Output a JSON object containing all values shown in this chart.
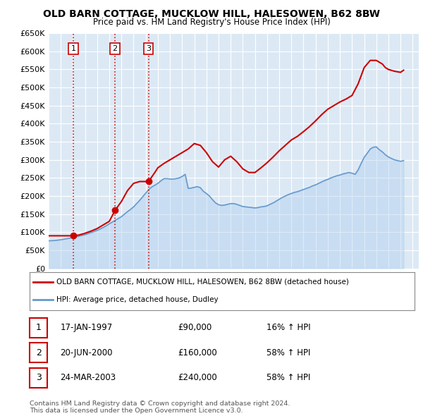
{
  "title": "OLD BARN COTTAGE, MUCKLOW HILL, HALESOWEN, B62 8BW",
  "subtitle": "Price paid vs. HM Land Registry's House Price Index (HPI)",
  "ylabel_ticks": [
    "£0",
    "£50K",
    "£100K",
    "£150K",
    "£200K",
    "£250K",
    "£300K",
    "£350K",
    "£400K",
    "£450K",
    "£500K",
    "£550K",
    "£600K",
    "£650K"
  ],
  "ytick_values": [
    0,
    50000,
    100000,
    150000,
    200000,
    250000,
    300000,
    350000,
    400000,
    450000,
    500000,
    550000,
    600000,
    650000
  ],
  "xlim_start": 1995.0,
  "xlim_end": 2025.5,
  "ylim": [
    0,
    650000
  ],
  "background_color": "#ffffff",
  "plot_bg_color": "#dce9f5",
  "grid_color": "#ffffff",
  "property_color": "#cc0000",
  "hpi_color": "#6699cc",
  "hpi_fill_color": "#aaccee",
  "vline_color": "#cc0000",
  "sale_dates": [
    1997.04,
    2000.47,
    2003.23
  ],
  "sale_prices": [
    90000,
    160000,
    240000
  ],
  "sale_labels": [
    "1",
    "2",
    "3"
  ],
  "legend_property_label": "OLD BARN COTTAGE, MUCKLOW HILL, HALESOWEN, B62 8BW (detached house)",
  "legend_hpi_label": "HPI: Average price, detached house, Dudley",
  "table_data": [
    [
      "1",
      "17-JAN-1997",
      "£90,000",
      "16% ↑ HPI"
    ],
    [
      "2",
      "20-JUN-2000",
      "£160,000",
      "58% ↑ HPI"
    ],
    [
      "3",
      "24-MAR-2003",
      "£240,000",
      "58% ↑ HPI"
    ]
  ],
  "footer": "Contains HM Land Registry data © Crown copyright and database right 2024.\nThis data is licensed under the Open Government Licence v3.0.",
  "hpi_x": [
    1995.0,
    1995.25,
    1995.5,
    1995.75,
    1996.0,
    1996.25,
    1996.5,
    1996.75,
    1997.0,
    1997.25,
    1997.5,
    1997.75,
    1998.0,
    1998.25,
    1998.5,
    1998.75,
    1999.0,
    1999.25,
    1999.5,
    1999.75,
    2000.0,
    2000.25,
    2000.5,
    2000.75,
    2001.0,
    2001.25,
    2001.5,
    2001.75,
    2002.0,
    2002.25,
    2002.5,
    2002.75,
    2003.0,
    2003.25,
    2003.5,
    2003.75,
    2004.0,
    2004.25,
    2004.5,
    2004.75,
    2005.0,
    2005.25,
    2005.5,
    2005.75,
    2006.0,
    2006.25,
    2006.5,
    2006.75,
    2007.0,
    2007.25,
    2007.5,
    2007.75,
    2008.0,
    2008.25,
    2008.5,
    2008.75,
    2009.0,
    2009.25,
    2009.5,
    2009.75,
    2010.0,
    2010.25,
    2010.5,
    2010.75,
    2011.0,
    2011.25,
    2011.5,
    2011.75,
    2012.0,
    2012.25,
    2012.5,
    2012.75,
    2013.0,
    2013.25,
    2013.5,
    2013.75,
    2014.0,
    2014.25,
    2014.5,
    2014.75,
    2015.0,
    2015.25,
    2015.5,
    2015.75,
    2016.0,
    2016.25,
    2016.5,
    2016.75,
    2017.0,
    2017.25,
    2017.5,
    2017.75,
    2018.0,
    2018.25,
    2018.5,
    2018.75,
    2019.0,
    2019.25,
    2019.5,
    2019.75,
    2020.0,
    2020.25,
    2020.5,
    2020.75,
    2021.0,
    2021.25,
    2021.5,
    2021.75,
    2022.0,
    2022.25,
    2022.5,
    2022.75,
    2023.0,
    2023.25,
    2023.5,
    2023.75,
    2024.0,
    2024.25
  ],
  "hpi_y": [
    76000,
    76500,
    77000,
    78000,
    79000,
    80500,
    82000,
    83500,
    85000,
    87000,
    89000,
    91000,
    93000,
    96000,
    99000,
    102000,
    105000,
    109000,
    113000,
    118000,
    123000,
    128000,
    133000,
    138000,
    143000,
    150000,
    157000,
    163000,
    170000,
    179000,
    188000,
    198000,
    208000,
    218000,
    225000,
    230000,
    235000,
    242000,
    248000,
    248000,
    247000,
    247000,
    248000,
    250000,
    254000,
    260000,
    221000,
    222000,
    224000,
    226000,
    223000,
    213000,
    207000,
    200000,
    190000,
    181000,
    176000,
    174000,
    175000,
    177000,
    179000,
    179000,
    177000,
    174000,
    171000,
    170000,
    169000,
    168000,
    167000,
    168000,
    170000,
    171000,
    173000,
    177000,
    181000,
    186000,
    191000,
    196000,
    200000,
    204000,
    207000,
    210000,
    212000,
    215000,
    218000,
    221000,
    224000,
    228000,
    231000,
    235000,
    239000,
    243000,
    246000,
    250000,
    253000,
    256000,
    258000,
    261000,
    263000,
    265000,
    263000,
    260000,
    272000,
    290000,
    307000,
    318000,
    330000,
    335000,
    336000,
    328000,
    322000,
    314000,
    308000,
    304000,
    300000,
    298000,
    296000,
    298000
  ],
  "prop_x": [
    1995.0,
    1995.5,
    1996.0,
    1996.5,
    1997.04,
    1997.5,
    1998.0,
    1998.5,
    1999.0,
    1999.5,
    2000.0,
    2000.47,
    2001.0,
    2001.5,
    2002.0,
    2002.5,
    2003.0,
    2003.23,
    2003.75,
    2004.0,
    2004.5,
    2005.0,
    2005.5,
    2006.0,
    2006.5,
    2007.0,
    2007.5,
    2008.0,
    2008.5,
    2009.0,
    2009.5,
    2010.0,
    2010.5,
    2011.0,
    2011.5,
    2012.0,
    2012.5,
    2013.0,
    2013.5,
    2014.0,
    2014.5,
    2015.0,
    2015.5,
    2016.0,
    2016.5,
    2017.0,
    2017.5,
    2018.0,
    2018.5,
    2019.0,
    2019.5,
    2020.0,
    2020.5,
    2021.0,
    2021.5,
    2022.0,
    2022.5,
    2022.75,
    2023.0,
    2023.5,
    2024.0,
    2024.25
  ],
  "prop_y": [
    90000,
    90000,
    90000,
    90000,
    90000,
    92000,
    97000,
    103000,
    110000,
    120000,
    130000,
    160000,
    185000,
    215000,
    235000,
    240000,
    240000,
    240000,
    265000,
    278000,
    290000,
    300000,
    310000,
    320000,
    330000,
    345000,
    340000,
    320000,
    295000,
    280000,
    300000,
    310000,
    295000,
    275000,
    265000,
    265000,
    278000,
    292000,
    308000,
    325000,
    340000,
    355000,
    365000,
    378000,
    392000,
    408000,
    425000,
    440000,
    450000,
    460000,
    468000,
    478000,
    510000,
    555000,
    575000,
    575000,
    565000,
    555000,
    550000,
    545000,
    542000,
    548000
  ]
}
